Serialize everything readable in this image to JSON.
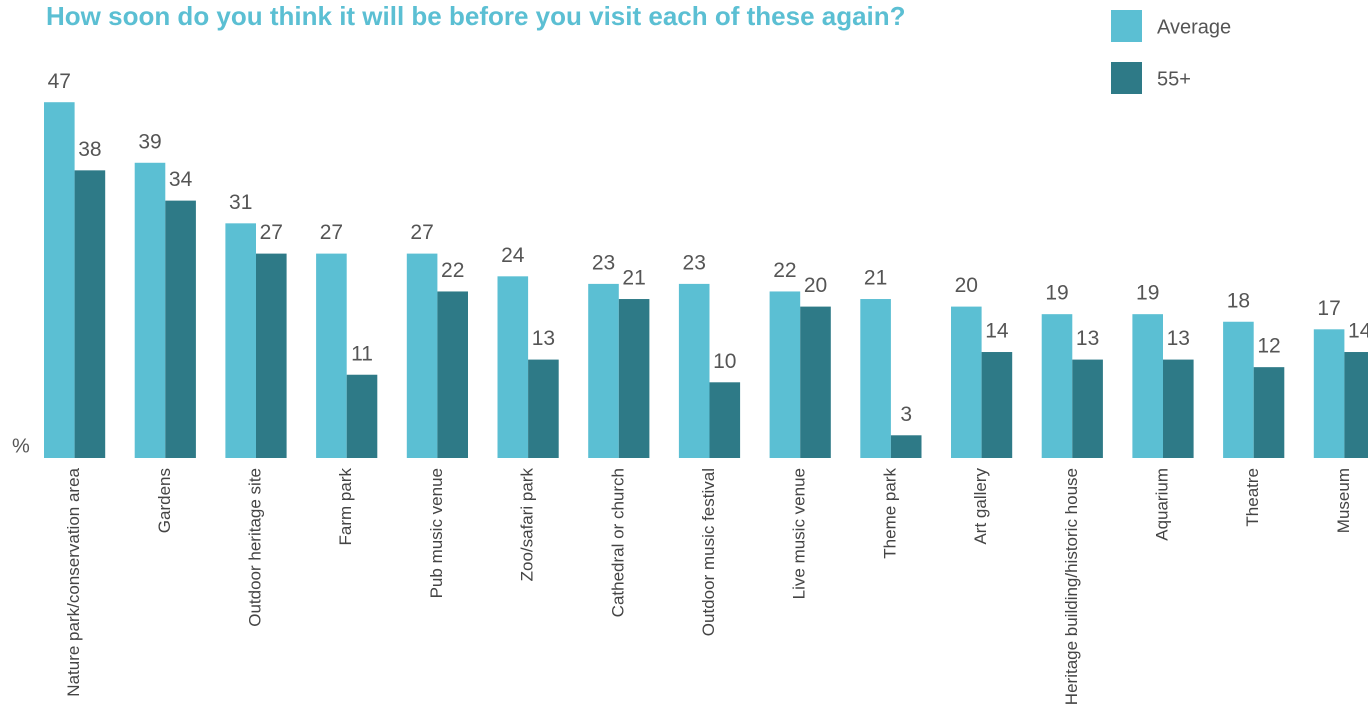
{
  "chart_data": {
    "type": "bar",
    "title": "How soon do you think it will be before you visit each of these again?",
    "y_label": "%",
    "categories": [
      "Nature park/conservation area",
      "Gardens",
      "Outdoor heritage site",
      "Farm park",
      "Pub music venue",
      "Zoo/safari park",
      "Cathedral or church",
      "Outdoor music festival",
      "Live music venue",
      "Theme park",
      "Art gallery",
      "Heritage building/historic house",
      "Aquarium",
      "Theatre",
      "Museum"
    ],
    "series": [
      {
        "name": "Average",
        "color": "#5bbfd3",
        "values": [
          47,
          39,
          31,
          27,
          27,
          24,
          23,
          23,
          22,
          21,
          20,
          19,
          19,
          18,
          17
        ]
      },
      {
        "name": "55+",
        "color": "#2e7a87",
        "values": [
          38,
          34,
          27,
          11,
          22,
          13,
          21,
          10,
          20,
          3,
          14,
          13,
          13,
          12,
          14
        ]
      }
    ]
  }
}
